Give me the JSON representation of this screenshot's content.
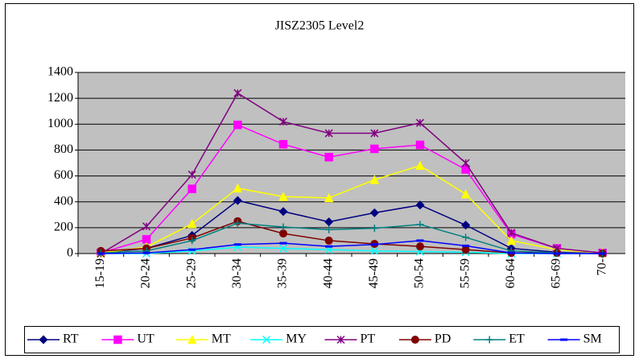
{
  "chart_data": {
    "type": "line",
    "title": "JISZ2305 Level2",
    "categories": [
      "15-19",
      "20-24",
      "25-29",
      "30-34",
      "35-39",
      "40-44",
      "45-49",
      "50-54",
      "55-59",
      "60-64",
      "65-69",
      "70-"
    ],
    "ylim": [
      0,
      1400
    ],
    "yticks": [
      0,
      200,
      400,
      600,
      800,
      1000,
      1200,
      1400
    ],
    "grid": true,
    "legend": "bottom",
    "series": [
      {
        "name": "RT",
        "color": "#000080",
        "marker": "diamond",
        "values": [
          5,
          40,
          140,
          410,
          325,
          245,
          315,
          375,
          220,
          40,
          10,
          0
        ]
      },
      {
        "name": "UT",
        "color": "#ff00ff",
        "marker": "square",
        "values": [
          5,
          110,
          500,
          995,
          845,
          745,
          810,
          840,
          650,
          150,
          40,
          5
        ]
      },
      {
        "name": "MT",
        "color": "#ffff00",
        "marker": "triangle",
        "values": [
          5,
          50,
          230,
          505,
          440,
          430,
          570,
          680,
          460,
          100,
          30,
          5
        ]
      },
      {
        "name": "MY",
        "color": "#00ffff",
        "marker": "x",
        "values": [
          0,
          0,
          20,
          50,
          40,
          30,
          20,
          15,
          10,
          0,
          0,
          0
        ]
      },
      {
        "name": "PT",
        "color": "#800080",
        "marker": "star",
        "values": [
          0,
          210,
          610,
          1240,
          1020,
          930,
          930,
          1010,
          700,
          160,
          40,
          5
        ]
      },
      {
        "name": "PD",
        "color": "#800000",
        "marker": "circle",
        "values": [
          20,
          40,
          120,
          250,
          155,
          100,
          75,
          55,
          30,
          5,
          5,
          0
        ]
      },
      {
        "name": "ET",
        "color": "#008080",
        "marker": "plus",
        "values": [
          5,
          20,
          100,
          235,
          205,
          185,
          195,
          225,
          125,
          20,
          5,
          0
        ]
      },
      {
        "name": "SM",
        "color": "#0000ff",
        "marker": "dash",
        "values": [
          0,
          5,
          30,
          70,
          80,
          55,
          70,
          100,
          60,
          5,
          0,
          0
        ]
      }
    ]
  }
}
